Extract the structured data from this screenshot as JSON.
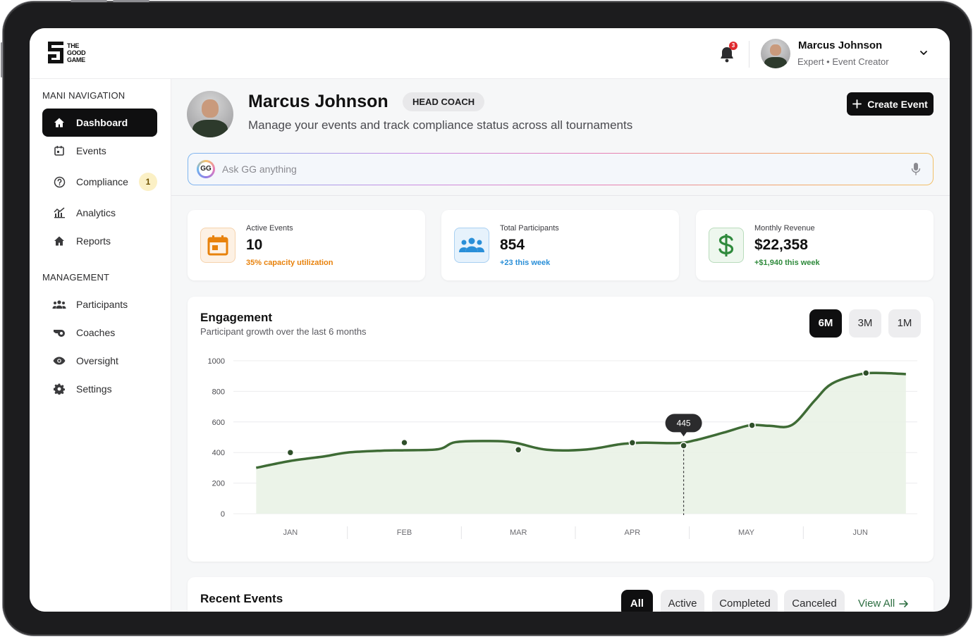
{
  "brand": {
    "logo_text": [
      "THE",
      "GOOD",
      "GAME"
    ]
  },
  "topbar": {
    "notification_count": "3",
    "user_name": "Marcus Johnson",
    "user_role": "Expert • Event Creator"
  },
  "sidebar": {
    "section1_title": "MANI NAVIGATION",
    "section2_title": "MANAGEMENT",
    "nav": [
      {
        "label": "Dashboard",
        "icon": "home-icon",
        "active": true
      },
      {
        "label": "Events",
        "icon": "calendar-icon"
      },
      {
        "label": "Compliance",
        "icon": "question-circle-icon",
        "badge": "1"
      },
      {
        "label": "Analytics",
        "icon": "analytics-icon"
      },
      {
        "label": "Reports",
        "icon": "home-icon"
      }
    ],
    "management": [
      {
        "label": "Participants",
        "icon": "people-icon"
      },
      {
        "label": "Coaches",
        "icon": "whistle-icon"
      },
      {
        "label": "Oversight",
        "icon": "eye-icon"
      },
      {
        "label": "Settings",
        "icon": "gear-icon"
      }
    ]
  },
  "hero": {
    "name": "Marcus Johnson",
    "badge": "HEAD COACH",
    "subtitle": "Manage your events and track compliance status across all tournaments",
    "create_button": "Create Event"
  },
  "ask": {
    "chip": "GG",
    "placeholder": "Ask GG anything"
  },
  "stats": [
    {
      "label": "Active Events",
      "value": "10",
      "note": "35% capacity utilization",
      "color": "#e8820c",
      "icon": "calendar-icon"
    },
    {
      "label": "Total Participants",
      "value": "854",
      "note": "+23 this week",
      "color": "#2a8fd8",
      "icon": "people-icon"
    },
    {
      "label": "Monthly Revenue",
      "value": "$22,358",
      "note": "+$1,940 this week",
      "color": "#2f8a3c",
      "icon": "dollar-icon"
    }
  ],
  "engagement": {
    "title": "Engagement",
    "subtitle": "Participant growth over the last 6 months",
    "ranges": [
      "6M",
      "3M",
      "1M"
    ],
    "active_range": "6M"
  },
  "chart_data": {
    "type": "area",
    "title": "",
    "xlabel": "",
    "ylabel": "",
    "categories": [
      "JAN",
      "FEB",
      "MAR",
      "APR",
      "MAY",
      "JUN"
    ],
    "ylim": [
      0,
      1000
    ],
    "yticks": [
      "1000",
      "800",
      "600",
      "400",
      "200",
      "0"
    ],
    "line_color": "#3e6b35",
    "fill_color": "#e9f2e5",
    "grid": true,
    "x": [
      0.4,
      1.0,
      1.6,
      2.0,
      2.6,
      3.0,
      3.6,
      3.9,
      4.5,
      4.93,
      5.5,
      6.2,
      6.8,
      7.2,
      7.8,
      8.1,
      8.6,
      9.06,
      9.4,
      9.8,
      10.2,
      10.5,
      11.0,
      11.36,
      11.8
    ],
    "values": [
      300,
      345,
      375,
      400,
      412,
      415,
      422,
      468,
      475,
      465,
      418,
      420,
      455,
      464,
      462,
      480,
      530,
      578,
      575,
      580,
      740,
      850,
      912,
      920,
      913
    ],
    "points": [
      {
        "x": 1.0,
        "y": 400
      },
      {
        "x": 3.0,
        "y": 465
      },
      {
        "x": 5.0,
        "y": 418
      },
      {
        "x": 7.0,
        "y": 464
      },
      {
        "x": 7.9,
        "y": 445
      },
      {
        "x": 9.1,
        "y": 578
      },
      {
        "x": 11.1,
        "y": 920
      }
    ],
    "tooltip": {
      "x": 7.9,
      "value": "445"
    }
  },
  "recent": {
    "title": "Recent Events",
    "filters": [
      "All",
      "Active",
      "Completed",
      "Canceled"
    ],
    "active_filter": "All",
    "view_all": "View All"
  }
}
